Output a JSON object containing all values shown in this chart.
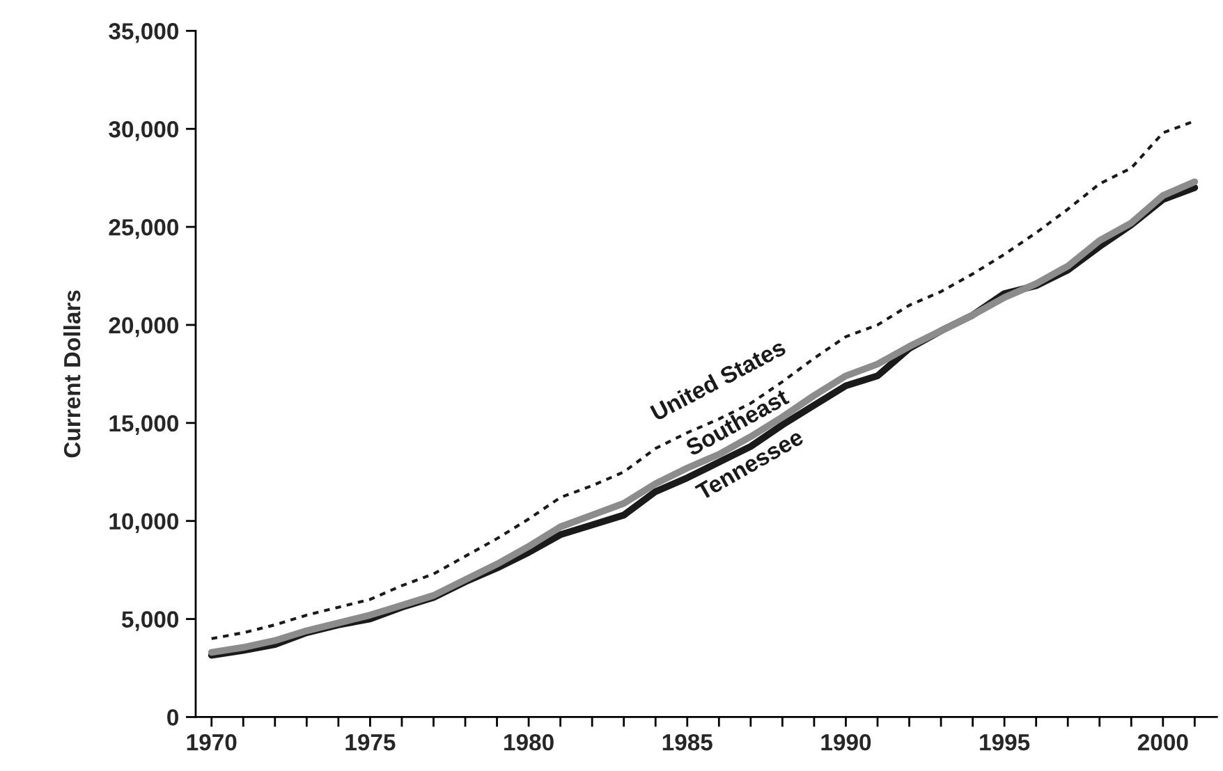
{
  "chart_data": {
    "type": "line",
    "ylabel": "Current Dollars",
    "x": [
      1970,
      1971,
      1972,
      1973,
      1974,
      1975,
      1976,
      1977,
      1978,
      1979,
      1980,
      1981,
      1982,
      1983,
      1984,
      1985,
      1986,
      1987,
      1988,
      1989,
      1990,
      1991,
      1992,
      1993,
      1994,
      1995,
      1996,
      1997,
      1998,
      1999,
      2000,
      2001
    ],
    "series": [
      {
        "name": "United States",
        "color": "#1a1a1a",
        "line_style": "dotted",
        "values": [
          4000,
          4300,
          4700,
          5200,
          5600,
          6000,
          6700,
          7300,
          8200,
          9100,
          10100,
          11200,
          11800,
          12500,
          13700,
          14500,
          15200,
          16000,
          17100,
          18300,
          19400,
          20000,
          21000,
          21700,
          22600,
          23600,
          24700,
          25900,
          27200,
          28000,
          29800,
          30400
        ]
      },
      {
        "name": "Southeast",
        "color": "#8c8c8c",
        "line_style": "solid",
        "values": [
          3300,
          3550,
          3900,
          4400,
          4800,
          5200,
          5700,
          6200,
          7000,
          7800,
          8700,
          9700,
          10300,
          10900,
          11900,
          12700,
          13400,
          14300,
          15300,
          16400,
          17400,
          18000,
          18900,
          19700,
          20500,
          21400,
          22100,
          23000,
          24300,
          25200,
          26600,
          27300
        ]
      },
      {
        "name": "Tennessee",
        "color": "#1a1a1a",
        "line_style": "solid",
        "values": [
          3150,
          3400,
          3700,
          4300,
          4700,
          5000,
          5600,
          6100,
          6900,
          7600,
          8400,
          9300,
          9800,
          10300,
          11500,
          12200,
          13000,
          13800,
          14900,
          15900,
          16900,
          17400,
          18800,
          19700,
          20500,
          21600,
          22000,
          22800,
          24000,
          25100,
          26400,
          27000
        ]
      }
    ],
    "xlim": [
      1969.5,
      2001.7
    ],
    "xticks": [
      1970,
      {
        "value": 1971,
        "label": null
      },
      {
        "value": 1972,
        "label": null
      },
      {
        "value": 1973,
        "label": null
      },
      {
        "value": 1974,
        "label": null
      },
      1975,
      {
        "value": 1976,
        "label": null
      },
      {
        "value": 1977,
        "label": null
      },
      {
        "value": 1978,
        "label": null
      },
      {
        "value": 1979,
        "label": null
      },
      1980,
      {
        "value": 1981,
        "label": null
      },
      {
        "value": 1982,
        "label": null
      },
      {
        "value": 1983,
        "label": null
      },
      {
        "value": 1984,
        "label": null
      },
      1985,
      {
        "value": 1986,
        "label": null
      },
      {
        "value": 1987,
        "label": null
      },
      {
        "value": 1988,
        "label": null
      },
      {
        "value": 1989,
        "label": null
      },
      1990,
      {
        "value": 1991,
        "label": null
      },
      {
        "value": 1992,
        "label": null
      },
      {
        "value": 1993,
        "label": null
      },
      {
        "value": 1994,
        "label": null
      },
      1995,
      {
        "value": 1996,
        "label": null
      },
      {
        "value": 1997,
        "label": null
      },
      {
        "value": 1998,
        "label": null
      },
      {
        "value": 1999,
        "label": null
      },
      2000,
      {
        "value": 2001,
        "label": null
      }
    ],
    "ylim": [
      0,
      35000
    ],
    "yticks": [
      {
        "value": 0,
        "label": "0"
      },
      {
        "value": 5000,
        "label": "5,000"
      },
      {
        "value": 10000,
        "label": "10,000"
      },
      {
        "value": 15000,
        "label": "15,000"
      },
      {
        "value": 20000,
        "label": "20,000"
      },
      {
        "value": 25000,
        "label": "25,000"
      },
      {
        "value": 30000,
        "label": "30,000"
      },
      {
        "value": 35000,
        "label": "35,000"
      }
    ],
    "grid": false,
    "legend": false
  }
}
